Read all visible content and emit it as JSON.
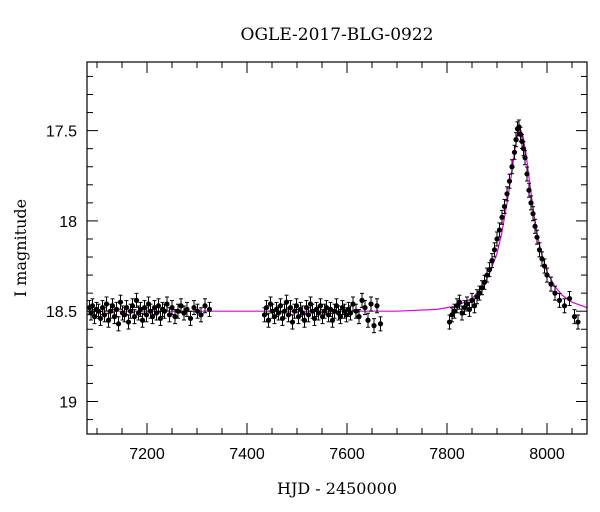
{
  "chart_data": {
    "type": "scatter",
    "title": "OGLE-2017-BLG-0922",
    "xlabel": "HJD - 2450000",
    "ylabel": "I magnitude",
    "xlim": [
      7080,
      8080
    ],
    "ylim": [
      19.18,
      17.12
    ],
    "y_inverted": true,
    "x_major_ticks": [
      7200,
      7400,
      7600,
      7800,
      8000
    ],
    "x_tick_labels": [
      "7200",
      "7400",
      "7600",
      "7800",
      "8000"
    ],
    "y_major_ticks": [
      17.5,
      18,
      18.5,
      19
    ],
    "y_tick_labels": [
      "17.5",
      "18",
      "18.5",
      "19"
    ],
    "grid": false,
    "legend": "none",
    "point_color": "#000000",
    "model_color": "#e000e0",
    "model": {
      "name": "",
      "x": [
        7080,
        7300,
        7500,
        7700,
        7780,
        7820,
        7850,
        7870,
        7885,
        7900,
        7910,
        7920,
        7928,
        7935,
        7941,
        7946,
        7952,
        7958,
        7965,
        7972,
        7980,
        7990,
        8000,
        8015,
        8030,
        8050,
        8080
      ],
      "y": [
        18.5,
        18.5,
        18.5,
        18.5,
        18.49,
        18.47,
        18.43,
        18.37,
        18.29,
        18.18,
        18.06,
        17.9,
        17.76,
        17.62,
        17.52,
        17.49,
        17.53,
        17.63,
        17.78,
        17.93,
        18.07,
        18.19,
        18.28,
        18.36,
        18.41,
        18.45,
        18.48
      ]
    },
    "series": [
      {
        "x": [
          7085,
          7088,
          7091,
          7095,
          7099,
          7103,
          7107,
          7111,
          7115,
          7119,
          7123,
          7127,
          7131,
          7135,
          7139,
          7143,
          7147,
          7151,
          7155,
          7159,
          7163,
          7167,
          7171,
          7175,
          7179,
          7183,
          7187,
          7191,
          7195,
          7199,
          7203,
          7207,
          7211,
          7215,
          7219,
          7223,
          7227,
          7231,
          7235,
          7240,
          7245,
          7250,
          7256,
          7262,
          7268,
          7274,
          7280,
          7287,
          7294,
          7301,
          7308,
          7316,
          7325,
          7435,
          7439,
          7443,
          7447,
          7451,
          7455,
          7459,
          7463,
          7467,
          7471,
          7475,
          7479,
          7483,
          7487,
          7491,
          7495,
          7499,
          7503,
          7507,
          7511,
          7515,
          7519,
          7523,
          7527,
          7531,
          7535,
          7539,
          7543,
          7547,
          7551,
          7555,
          7559,
          7563,
          7567,
          7571,
          7575,
          7579,
          7583,
          7587,
          7591,
          7595,
          7599,
          7603,
          7607,
          7612,
          7618,
          7624,
          7630,
          7636,
          7642,
          7648,
          7654,
          7660,
          7667,
          7805,
          7810,
          7815,
          7820,
          7825,
          7830,
          7835,
          7840,
          7845,
          7850,
          7855,
          7860,
          7865,
          7870,
          7875,
          7880,
          7885,
          7890,
          7895,
          7900,
          7905,
          7910,
          7915,
          7920,
          7925,
          7930,
          7935,
          7938,
          7941,
          7944,
          7947,
          7950,
          7953,
          7956,
          7960,
          7964,
          7968,
          7972,
          7976,
          7980,
          7985,
          7990,
          7995,
          8000,
          8008,
          8016,
          8025,
          8035,
          8045,
          8055,
          8062
        ],
        "y": [
          18.48,
          18.51,
          18.47,
          18.53,
          18.49,
          18.5,
          18.54,
          18.48,
          18.52,
          18.46,
          18.55,
          18.5,
          18.47,
          18.53,
          18.49,
          18.57,
          18.45,
          18.51,
          18.52,
          18.48,
          18.56,
          18.5,
          18.47,
          18.53,
          18.44,
          18.51,
          18.49,
          18.55,
          18.48,
          18.52,
          18.46,
          18.5,
          18.53,
          18.48,
          18.51,
          18.47,
          18.54,
          18.49,
          18.5,
          18.46,
          18.52,
          18.48,
          18.53,
          18.5,
          18.47,
          18.51,
          18.49,
          18.54,
          18.48,
          18.5,
          18.52,
          18.47,
          18.49,
          18.52,
          18.48,
          18.55,
          18.46,
          18.5,
          18.53,
          18.49,
          18.51,
          18.47,
          18.54,
          18.5,
          18.45,
          18.52,
          18.48,
          18.56,
          18.5,
          18.47,
          18.53,
          18.49,
          18.51,
          18.55,
          18.48,
          18.52,
          18.46,
          18.5,
          18.54,
          18.49,
          18.51,
          18.47,
          18.53,
          18.5,
          18.48,
          18.52,
          18.49,
          18.55,
          18.5,
          18.47,
          18.51,
          18.53,
          18.48,
          18.5,
          18.52,
          18.49,
          18.51,
          18.46,
          18.5,
          18.53,
          18.44,
          18.48,
          18.55,
          18.46,
          18.58,
          18.47,
          18.57,
          18.56,
          18.52,
          18.5,
          18.47,
          18.45,
          18.51,
          18.48,
          18.46,
          18.49,
          18.44,
          18.47,
          18.42,
          18.4,
          18.37,
          18.34,
          18.3,
          18.27,
          18.22,
          18.16,
          18.1,
          18.05,
          17.98,
          17.92,
          17.85,
          17.78,
          17.7,
          17.62,
          17.55,
          17.49,
          17.48,
          17.52,
          17.56,
          17.6,
          17.65,
          17.74,
          17.83,
          17.9,
          17.96,
          18.03,
          18.09,
          18.16,
          18.21,
          18.25,
          18.3,
          18.35,
          18.4,
          18.44,
          18.47,
          18.43,
          18.53,
          18.56
        ]
      }
    ]
  }
}
